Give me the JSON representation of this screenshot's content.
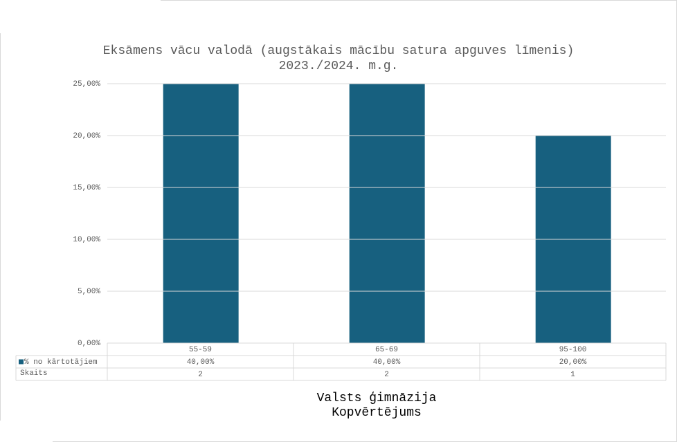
{
  "chart_data": {
    "type": "bar",
    "title": "Eksāmens vācu valodā (augstākais mācību satura apguves līmenis)",
    "subtitle": "2023./2024. m.g.",
    "x_label": [
      "Valsts ģimnāzija",
      "Kopvērtējums"
    ],
    "categories": [
      "55-59",
      "65-69",
      "95-100"
    ],
    "series": [
      {
        "name": "% no kārtotājiem",
        "color": "#17607f",
        "values": [
          40,
          40,
          20
        ],
        "value_labels": [
          "40,00%",
          "40,00%",
          "20,00%"
        ]
      }
    ],
    "table_rows": [
      {
        "name": "Skaits",
        "values": [
          2,
          2,
          1
        ]
      }
    ],
    "ylim": [
      0,
      25
    ],
    "yticks": [
      {
        "value": 0,
        "label": "0,00%"
      },
      {
        "value": 5,
        "label": "5,00%"
      },
      {
        "value": 10,
        "label": "10,00%"
      },
      {
        "value": 15,
        "label": "15,00%"
      },
      {
        "value": 20,
        "label": "20,00%"
      },
      {
        "value": 25,
        "label": "25,00%"
      }
    ],
    "grid": true
  }
}
